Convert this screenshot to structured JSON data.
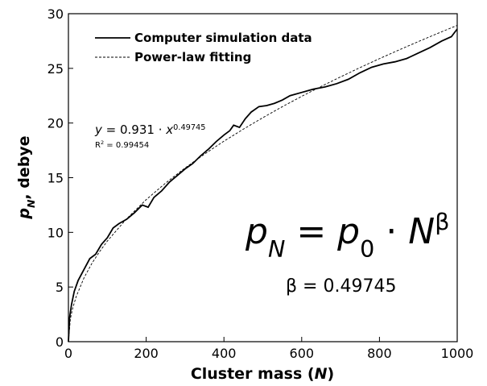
{
  "chart_data": {
    "type": "line",
    "xlabel": [
      {
        "text": "Cluster mass ("
      },
      {
        "text": "N",
        "format": "italic"
      },
      {
        "text": ")"
      }
    ],
    "ylabel": [
      {
        "text": "p",
        "format": "italic"
      },
      {
        "text": "N",
        "format": "sub-italic"
      },
      {
        "text": ", debye"
      }
    ],
    "xlim": [
      0,
      1000
    ],
    "xticks": [
      0,
      200,
      400,
      600,
      800,
      1000
    ],
    "ylim": [
      0,
      30
    ],
    "yticks": [
      0,
      5,
      10,
      15,
      20,
      25,
      30
    ],
    "legend": "upper left",
    "series": [
      {
        "name": "Computer simulation data",
        "color": "#000000",
        "style": "solid",
        "x": [
          0,
          3,
          8,
          15,
          25,
          40,
          55,
          70,
          85,
          100,
          115,
          130,
          150,
          170,
          190,
          205,
          220,
          240,
          260,
          280,
          300,
          320,
          340,
          360,
          380,
          400,
          415,
          425,
          440,
          455,
          470,
          490,
          510,
          530,
          550,
          570,
          600,
          630,
          660,
          690,
          720,
          750,
          780,
          810,
          840,
          870,
          900,
          930,
          960,
          985,
          1000
        ],
        "values": [
          0,
          2.2,
          3.4,
          4.6,
          5.6,
          6.6,
          7.6,
          8.0,
          8.9,
          9.5,
          10.4,
          10.8,
          11.2,
          11.8,
          12.5,
          12.3,
          13.2,
          13.8,
          14.6,
          15.2,
          15.8,
          16.3,
          17.0,
          17.6,
          18.3,
          18.9,
          19.3,
          19.8,
          19.6,
          20.4,
          21.0,
          21.5,
          21.6,
          21.8,
          22.1,
          22.5,
          22.8,
          23.1,
          23.3,
          23.6,
          24.0,
          24.6,
          25.1,
          25.4,
          25.6,
          25.9,
          26.4,
          26.9,
          27.5,
          27.9,
          28.6
        ]
      },
      {
        "name": "Power-law fitting",
        "color": "#000000",
        "style": "dashed",
        "x": [
          0,
          5,
          10,
          20,
          40,
          60,
          80,
          100,
          150,
          200,
          250,
          300,
          350,
          400,
          450,
          500,
          550,
          600,
          650,
          700,
          750,
          800,
          850,
          900,
          950,
          1000
        ],
        "values": [
          0,
          2.07,
          2.93,
          4.13,
          5.83,
          7.14,
          8.23,
          9.2,
          11.26,
          12.99,
          14.51,
          15.89,
          17.16,
          18.34,
          19.44,
          20.49,
          21.49,
          22.44,
          23.35,
          24.22,
          25.07,
          25.89,
          26.68,
          27.45,
          28.2,
          28.93
        ]
      }
    ],
    "annotations": [
      [
        {
          "text": "y",
          "format": "italic"
        },
        {
          "text": " = 0.931 · "
        },
        {
          "text": "x",
          "format": "italic"
        },
        {
          "text": "0.49745",
          "format": "sup"
        }
      ],
      [
        {
          "text": "R"
        },
        {
          "text": "2",
          "format": "sup"
        },
        {
          "text": " = 0.99454"
        }
      ],
      [
        {
          "text": "p",
          "format": "italic"
        },
        {
          "text": "N",
          "format": "sub-italic"
        },
        {
          "text": " = "
        },
        {
          "text": "p",
          "format": "italic"
        },
        {
          "text": "0",
          "format": "sub"
        },
        {
          "text": " · "
        },
        {
          "text": "N",
          "format": "italic"
        },
        {
          "text": "β",
          "format": "sup"
        }
      ],
      [
        {
          "text": "β = 0.49745"
        }
      ]
    ]
  }
}
